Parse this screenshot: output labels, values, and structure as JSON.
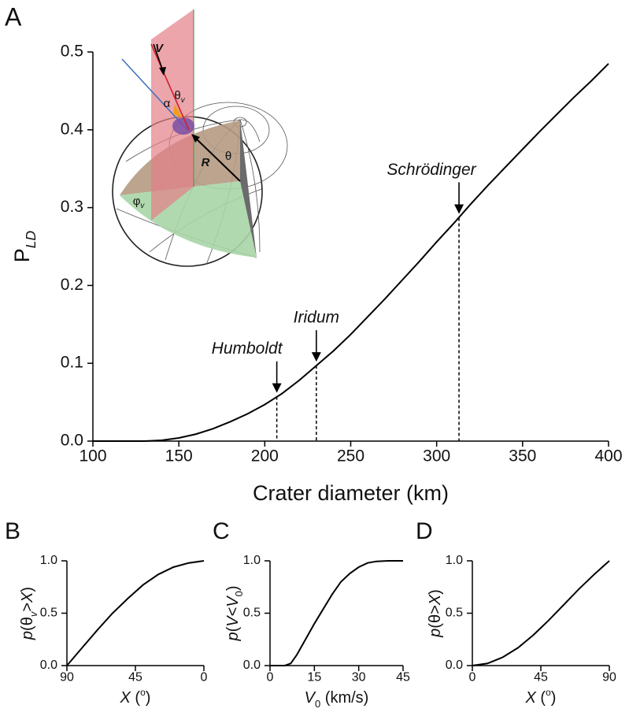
{
  "chart_data": [
    {
      "type": "line",
      "panel": "A",
      "xlabel": [
        {
          "text": "Crater diameter (km)"
        }
      ],
      "ylabel": [
        {
          "text": "P"
        },
        {
          "text": "LD",
          "sub": true,
          "italic": true
        }
      ],
      "x": [
        100,
        125,
        130,
        140,
        150,
        160,
        170,
        180,
        190,
        200,
        210,
        220,
        230,
        240,
        250,
        260,
        270,
        280,
        290,
        300,
        310,
        320,
        330,
        340,
        350,
        360,
        370,
        380,
        390,
        400
      ],
      "values": [
        0,
        0,
        0,
        0.001,
        0.004,
        0.009,
        0.016,
        0.025,
        0.035,
        0.047,
        0.061,
        0.078,
        0.097,
        0.116,
        0.137,
        0.16,
        0.183,
        0.207,
        0.231,
        0.256,
        0.28,
        0.305,
        0.329,
        0.352,
        0.375,
        0.398,
        0.42,
        0.442,
        0.463,
        0.485
      ],
      "color": "#000000",
      "xlim": [
        100,
        400
      ],
      "xticks": [
        100,
        150,
        200,
        250,
        300,
        350,
        400
      ],
      "ylim": [
        0,
        0.5
      ],
      "yticks": [
        {
          "value": 0,
          "label": "0.0"
        },
        {
          "value": 0.1,
          "label": "0.1"
        },
        {
          "value": 0.2,
          "label": "0.2"
        },
        {
          "value": 0.3,
          "label": "0.3"
        },
        {
          "value": 0.4,
          "label": "0.4"
        },
        {
          "value": 0.5,
          "label": "0.5"
        }
      ],
      "annotations": [
        {
          "text": "Humboldt",
          "x": 207,
          "y": 0.057
        },
        {
          "text": "Iridum",
          "x": 230,
          "y": 0.097
        },
        {
          "text": "Schrödinger",
          "x": 313,
          "y": 0.287
        }
      ],
      "inset": {
        "labels": [
          [
            {
              "text": "V",
              "italic": true,
              "bold": true
            }
          ],
          [
            {
              "text": "θ"
            },
            {
              "text": "v",
              "sub": true,
              "italic": true
            }
          ],
          [
            {
              "text": "α"
            }
          ],
          [
            {
              "text": "R",
              "italic": true,
              "bold": true
            }
          ],
          [
            {
              "text": "θ"
            }
          ],
          [
            {
              "text": "φ"
            },
            {
              "text": "v",
              "sub": true,
              "italic": true
            }
          ]
        ]
      }
    },
    {
      "type": "line",
      "panel": "B",
      "xlabel": [
        {
          "text": "X",
          "italic": true
        },
        {
          "text": " ("
        },
        {
          "text": "o",
          "sup": true
        },
        {
          "text": ")"
        }
      ],
      "ylabel": [
        {
          "text": "p",
          "italic": true
        },
        {
          "text": "(θ"
        },
        {
          "text": "v",
          "sub": true,
          "italic": true
        },
        {
          "text": ">"
        },
        {
          "text": "X",
          "italic": true
        },
        {
          "text": ")"
        }
      ],
      "x": [
        90,
        80,
        70,
        60,
        50,
        40,
        30,
        20,
        10,
        0
      ],
      "values": [
        0,
        0.17,
        0.34,
        0.5,
        0.64,
        0.77,
        0.87,
        0.94,
        0.98,
        1
      ],
      "color": "#000000",
      "xlim": [
        90,
        0
      ],
      "xticks": [
        90,
        45,
        0
      ],
      "ylim": [
        0,
        1
      ],
      "yticks": [
        {
          "value": 0,
          "label": "0.0"
        },
        {
          "value": 0.5,
          "label": "0.5"
        },
        {
          "value": 1,
          "label": "1.0"
        }
      ]
    },
    {
      "type": "line",
      "panel": "C",
      "xlabel": [
        {
          "text": "V",
          "italic": true
        },
        {
          "text": "0",
          "sub": true
        },
        {
          "text": " (km/s)"
        }
      ],
      "ylabel": [
        {
          "text": "p",
          "italic": true
        },
        {
          "text": "("
        },
        {
          "text": "V",
          "italic": true
        },
        {
          "text": "<"
        },
        {
          "text": "V",
          "italic": true
        },
        {
          "text": "0",
          "sub": true
        },
        {
          "text": ")"
        }
      ],
      "x": [
        0,
        5,
        7,
        9,
        12,
        15,
        18,
        21,
        24,
        27,
        30,
        33,
        36,
        40,
        45
      ],
      "values": [
        0,
        0,
        0.02,
        0.1,
        0.25,
        0.4,
        0.54,
        0.68,
        0.8,
        0.88,
        0.94,
        0.98,
        0.995,
        1,
        1
      ],
      "color": "#000000",
      "xlim": [
        0,
        45
      ],
      "xticks": [
        0,
        15,
        30,
        45
      ],
      "ylim": [
        0,
        1
      ],
      "yticks": [
        {
          "value": 0,
          "label": "0.0"
        },
        {
          "value": 0.5,
          "label": "0.5"
        },
        {
          "value": 1,
          "label": "1.0"
        }
      ]
    },
    {
      "type": "line",
      "panel": "D",
      "xlabel": [
        {
          "text": "X",
          "italic": true
        },
        {
          "text": " ("
        },
        {
          "text": "o",
          "sup": true
        },
        {
          "text": ")"
        }
      ],
      "ylabel": [
        {
          "text": "p",
          "italic": true
        },
        {
          "text": "(θ>"
        },
        {
          "text": "X",
          "italic": true
        },
        {
          "text": ")"
        }
      ],
      "x": [
        0,
        10,
        20,
        30,
        40,
        45,
        50,
        60,
        70,
        80,
        90
      ],
      "values": [
        0,
        0.02,
        0.08,
        0.17,
        0.29,
        0.36,
        0.43,
        0.58,
        0.73,
        0.87,
        1
      ],
      "color": "#000000",
      "xlim": [
        0,
        90
      ],
      "xticks": [
        0,
        45,
        90
      ],
      "ylim": [
        0,
        1
      ],
      "yticks": [
        {
          "value": 0,
          "label": "0.0"
        },
        {
          "value": 0.5,
          "label": "0.5"
        },
        {
          "value": 1,
          "label": "1.0"
        }
      ]
    }
  ]
}
